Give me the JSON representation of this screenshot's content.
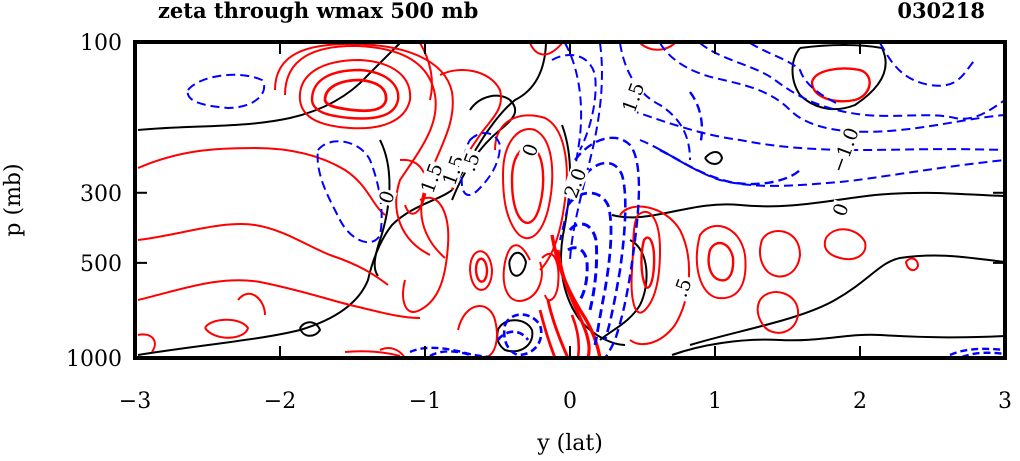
{
  "header": {
    "title": "zeta through wmax 500 mb",
    "date": "030218"
  },
  "chart_data": {
    "type": "contour",
    "title": "zeta through wmax 500 mb",
    "xlabel": "y (lat)",
    "ylabel": "p (mb)",
    "xlim": [
      -3,
      3
    ],
    "ylim": [
      1000,
      100
    ],
    "x_ticks": [
      {
        "value": -3,
        "label": "−3"
      },
      {
        "value": -2,
        "label": "−2"
      },
      {
        "value": -1,
        "label": "−1"
      },
      {
        "value": 0,
        "label": "0"
      },
      {
        "value": 1,
        "label": "1"
      },
      {
        "value": 2,
        "label": "2"
      },
      {
        "value": 3,
        "label": "3"
      }
    ],
    "y_ticks": [
      {
        "value": 100,
        "label": "100"
      },
      {
        "value": 300,
        "label": "300"
      },
      {
        "value": 500,
        "label": "500"
      },
      {
        "value": 1000,
        "label": "1000"
      }
    ],
    "contour_labels": [
      {
        "text": "1.5",
        "x": -0.95,
        "p": 270
      },
      {
        "text": "1.5",
        "x": -0.8,
        "p": 255
      },
      {
        "text": ".5",
        "x": -0.68,
        "p": 240
      },
      {
        "text": "0",
        "x": -0.27,
        "p": 220
      },
      {
        "text": "0",
        "x": -1.26,
        "p": 310
      },
      {
        "text": "2.0",
        "x": 0.04,
        "p": 280
      },
      {
        "text": "1.5",
        "x": 0.44,
        "p": 150
      },
      {
        "text": "−1.0",
        "x": 1.9,
        "p": 220
      },
      {
        "text": "0",
        "x": 1.87,
        "p": 340
      },
      {
        "text": ".5",
        "x": 0.78,
        "p": 600
      }
    ],
    "series": [
      {
        "color": "#ff0000",
        "style": "solid",
        "sign": "positive"
      },
      {
        "color": "#0000ff",
        "style": "dashed",
        "sign": "negative"
      },
      {
        "color": "#000000",
        "style": "solid",
        "sign": "zero"
      }
    ]
  }
}
